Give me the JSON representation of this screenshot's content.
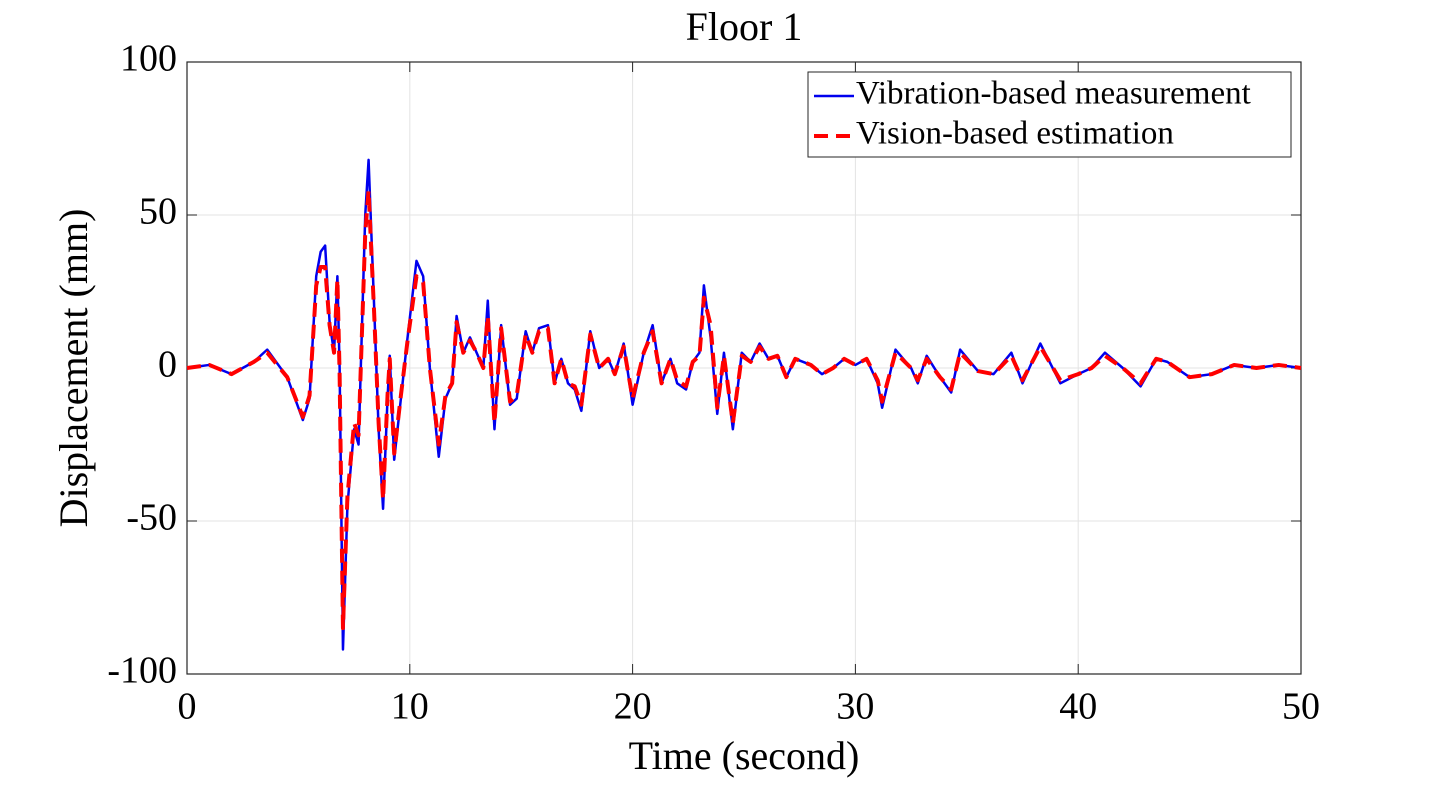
{
  "chart_data": {
    "type": "line",
    "title": "Floor 1",
    "xlabel": "Time (second)",
    "ylabel": "Displacement (mm)",
    "x": [
      0,
      1,
      2,
      3,
      3.6,
      4.5,
      5.2,
      5.5,
      5.8,
      6,
      6.2,
      6.4,
      6.6,
      6.75,
      6.85,
      7,
      7.2,
      7.5,
      7.7,
      8,
      8.15,
      8.4,
      8.6,
      8.8,
      9,
      9.1,
      9.3,
      9.6,
      9.9,
      10.3,
      10.6,
      10.9,
      11.3,
      11.6,
      11.9,
      12.1,
      12.4,
      12.7,
      13,
      13.3,
      13.5,
      13.8,
      14.1,
      14.5,
      14.8,
      15.2,
      15.5,
      15.8,
      16.2,
      16.5,
      16.8,
      17.1,
      17.4,
      17.7,
      18.1,
      18.5,
      18.9,
      19.2,
      19.6,
      20,
      20.5,
      20.9,
      21.3,
      21.7,
      22,
      22.4,
      22.7,
      23,
      23.2,
      23.5,
      23.8,
      24.1,
      24.5,
      24.9,
      25.3,
      25.7,
      26.1,
      26.5,
      26.9,
      27.3,
      28,
      28.5,
      29,
      29.5,
      30,
      30.5,
      31,
      31.2,
      31.8,
      32.5,
      32.8,
      33.2,
      33.8,
      34.3,
      34.7,
      35.5,
      36.2,
      37,
      37.5,
      38.3,
      39.2,
      40,
      40.6,
      41.2,
      42,
      42.8,
      43.5,
      44,
      45,
      46,
      47,
      48,
      49,
      50
    ],
    "series": [
      {
        "name": "Vibration-based measurement",
        "color": "#0000ee",
        "dash": false,
        "values": [
          0,
          1,
          -2,
          2,
          6,
          -3,
          -17,
          -10,
          30,
          38,
          40,
          15,
          5,
          30,
          0,
          -92,
          -45,
          -20,
          -25,
          50,
          68,
          20,
          -20,
          -46,
          -10,
          4,
          -30,
          -10,
          10,
          35,
          30,
          0,
          -29,
          -10,
          -5,
          17,
          5,
          10,
          5,
          0,
          22,
          -20,
          14,
          -12,
          -10,
          12,
          5,
          13,
          14,
          -5,
          3,
          -5,
          -7,
          -14,
          12,
          0,
          3,
          -2,
          8,
          -12,
          5,
          14,
          -5,
          3,
          -5,
          -7,
          2,
          5,
          27,
          10,
          -15,
          5,
          -20,
          5,
          2,
          8,
          3,
          4,
          -3,
          3,
          1,
          -2,
          0,
          3,
          1,
          3,
          -5,
          -13,
          6,
          0,
          -5,
          4,
          -3,
          -8,
          6,
          -1,
          -2,
          5,
          -5,
          8,
          -5,
          -2,
          0,
          5,
          0,
          -6,
          3,
          2,
          -3,
          -2,
          1,
          0,
          1,
          0
        ]
      },
      {
        "name": "Vision-based estimation",
        "color": "#ff0000",
        "dash": true,
        "values": [
          0,
          1,
          -2,
          2,
          5,
          -3,
          -16,
          -9,
          27,
          33,
          33,
          14,
          5,
          29,
          -2,
          -85,
          -42,
          -18,
          -22,
          44,
          58,
          18,
          -18,
          -43,
          -9,
          3,
          -28,
          -9,
          9,
          30,
          28,
          0,
          -25,
          -9,
          -5,
          15,
          5,
          9,
          5,
          0,
          17,
          -18,
          13,
          -11,
          -9,
          11,
          5,
          12,
          13,
          -5,
          3,
          -5,
          -6,
          -12,
          11,
          0,
          3,
          -2,
          7,
          -10,
          5,
          12,
          -5,
          3,
          -4,
          -6,
          2,
          4,
          23,
          14,
          -13,
          4,
          -18,
          4,
          2,
          7,
          3,
          4,
          -3,
          3,
          1,
          -2,
          0,
          3,
          1,
          3,
          -4,
          -11,
          5,
          0,
          -4,
          3,
          -3,
          -7,
          5,
          -1,
          -2,
          4,
          -4,
          7,
          -4,
          -2,
          0,
          4,
          0,
          -5,
          3,
          2,
          -3,
          -2,
          1,
          0,
          1,
          0
        ]
      }
    ],
    "xlim": [
      0,
      50
    ],
    "xticks": [
      0,
      10,
      20,
      30,
      40,
      50
    ],
    "ylim": [
      -100,
      100
    ],
    "yticks": [
      -100,
      -50,
      0,
      50,
      100
    ],
    "grid": true,
    "legend": "top-right"
  }
}
